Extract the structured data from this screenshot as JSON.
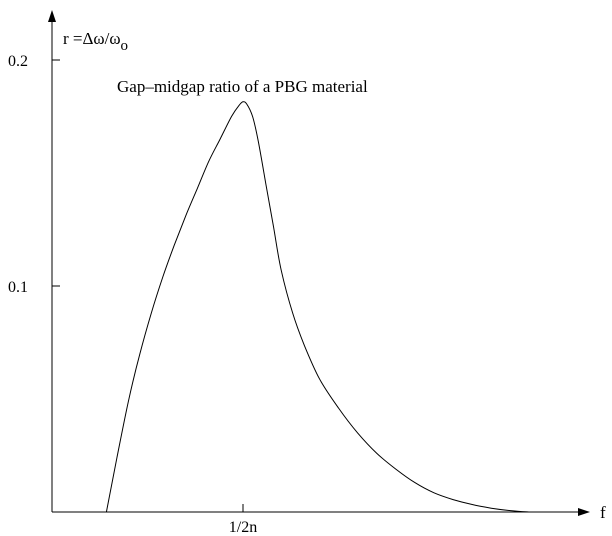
{
  "chart_data": {
    "type": "line",
    "title": "Gap–midgap ratio of a PBG material",
    "xlabel": "f",
    "ylabel": "r =Δω/ω",
    "ylabel_sub": "o",
    "yticks": [
      {
        "value": 0.1,
        "label": "0.1"
      },
      {
        "value": 0.2,
        "label": "0.2"
      }
    ],
    "xticks": [
      {
        "value": 1.0,
        "label": "1/2n"
      }
    ],
    "xlim": [
      0,
      2.7
    ],
    "ylim": [
      0,
      0.235
    ],
    "grid": false,
    "legend": "none",
    "series": [
      {
        "x": [
          0.285,
          0.34,
          0.4,
          0.46,
          0.52,
          0.58,
          0.64,
          0.7,
          0.76,
          0.82,
          0.88,
          0.94,
          0.98,
          1.0,
          1.02,
          1.05,
          1.08,
          1.12,
          1.16,
          1.2,
          1.26,
          1.32,
          1.4,
          1.5,
          1.6,
          1.7,
          1.8,
          1.9,
          2.0,
          2.1,
          2.2,
          2.3,
          2.4,
          2.5
        ],
        "y": [
          0.0,
          0.024,
          0.049,
          0.07,
          0.088,
          0.104,
          0.118,
          0.131,
          0.143,
          0.155,
          0.165,
          0.175,
          0.18,
          0.1815,
          0.1805,
          0.175,
          0.164,
          0.145,
          0.126,
          0.107,
          0.088,
          0.074,
          0.059,
          0.046,
          0.035,
          0.026,
          0.019,
          0.013,
          0.0085,
          0.0055,
          0.0033,
          0.0017,
          0.0006,
          0.0
        ]
      }
    ]
  }
}
